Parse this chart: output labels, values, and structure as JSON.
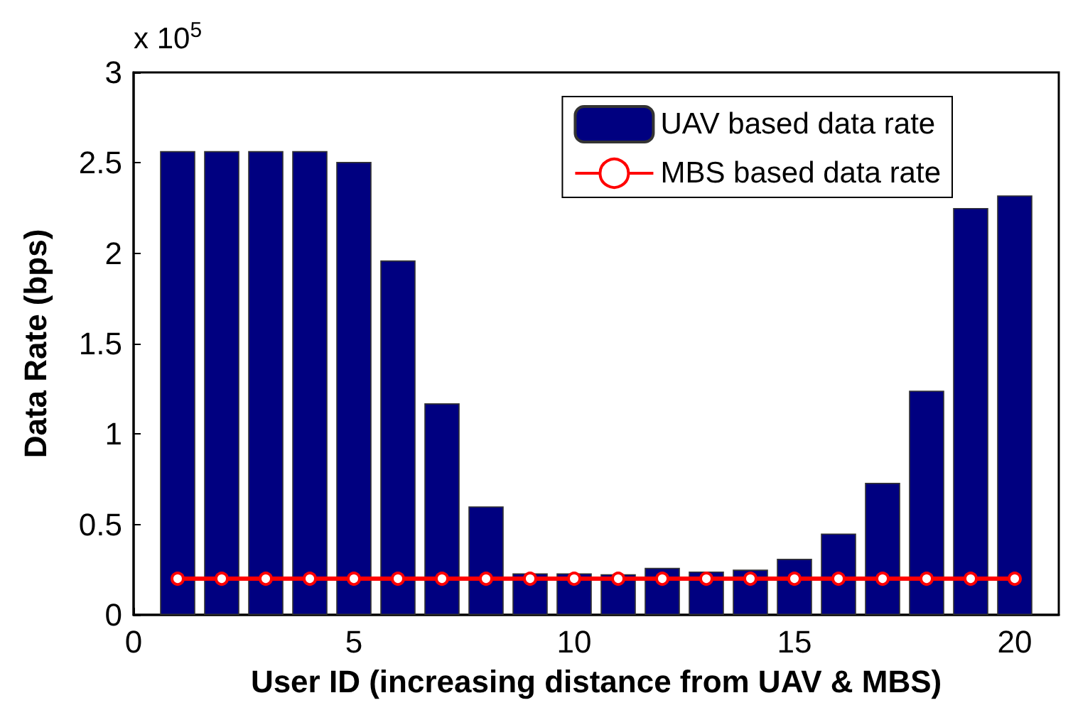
{
  "chart_data": {
    "type": "bar",
    "xlabel": "User ID (increasing distance from UAV & MBS)",
    "ylabel": "Data Rate (bps)",
    "annotations": [
      "x 10$^{5}$"
    ],
    "x": [
      1,
      2,
      3,
      4,
      5,
      6,
      7,
      8,
      9,
      10,
      11,
      12,
      13,
      14,
      15,
      16,
      17,
      18,
      19,
      20
    ],
    "series": [
      {
        "name": "UAV based data rate",
        "color": "#000080",
        "values": [
          2.565,
          2.565,
          2.565,
          2.565,
          2.505,
          1.96,
          1.17,
          0.6,
          0.23,
          0.23,
          0.225,
          0.26,
          0.24,
          0.25,
          0.31,
          0.45,
          0.73,
          1.24,
          2.25,
          2.32
        ]
      },
      {
        "name": "MBS based data rate",
        "type": "line",
        "color": "#ff0000",
        "marker": "circle",
        "values": [
          0.2,
          0.2,
          0.2,
          0.2,
          0.2,
          0.2,
          0.2,
          0.2,
          0.2,
          0.2,
          0.2,
          0.2,
          0.2,
          0.2,
          0.2,
          0.2,
          0.2,
          0.2,
          0.2,
          0.2
        ]
      }
    ],
    "xlim": [
      0,
      21
    ],
    "xticks": [
      0,
      5,
      10,
      15,
      20
    ],
    "ylim": [
      0,
      3
    ],
    "yticks": [
      0,
      0.5,
      1,
      1.5,
      2,
      2.5,
      3
    ],
    "grid": false,
    "legend": "top right"
  }
}
